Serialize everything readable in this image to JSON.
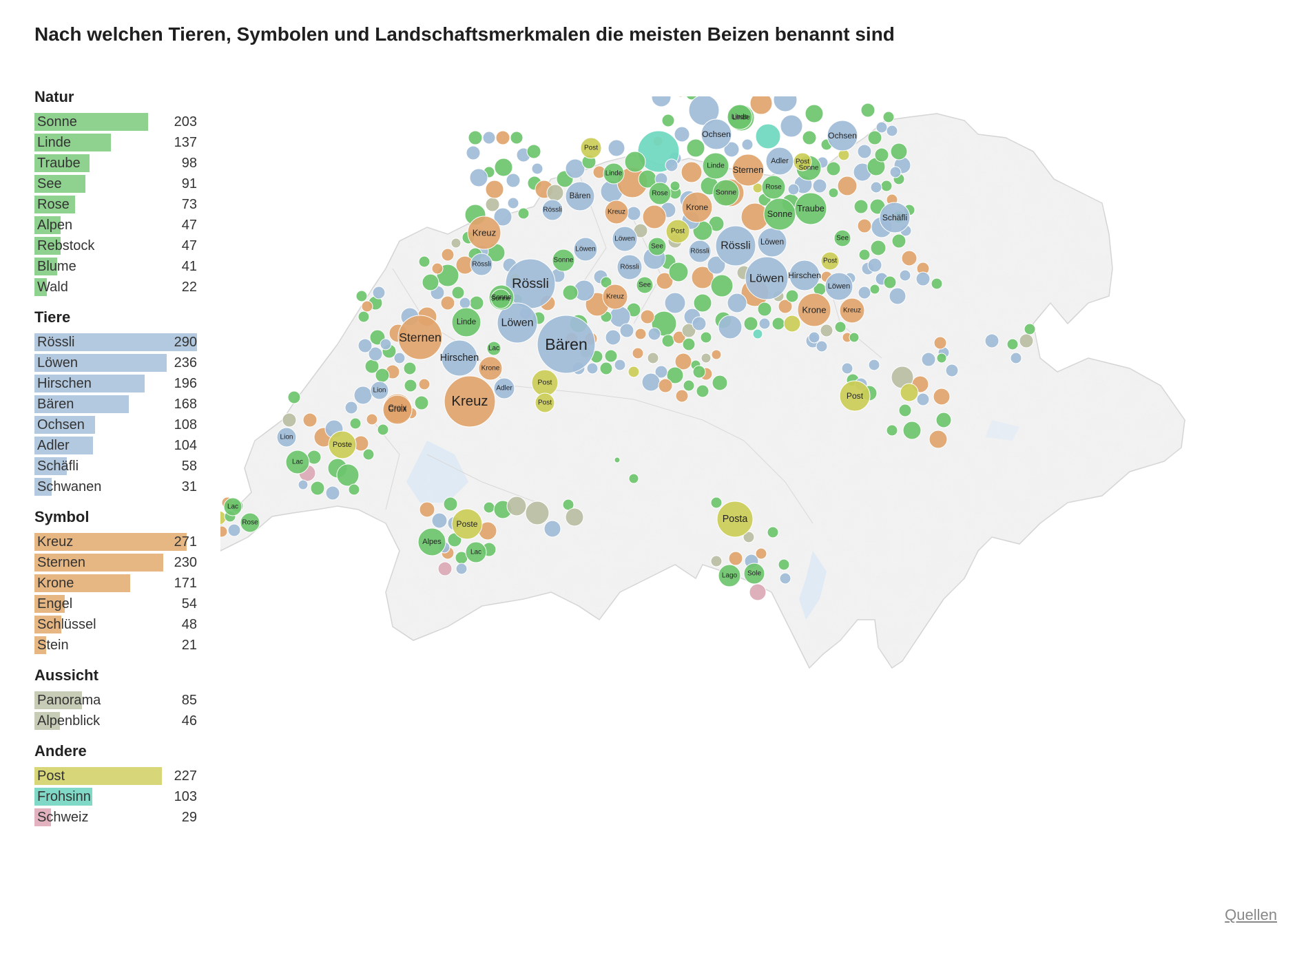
{
  "title": "Nach welchen Tieren, Symbolen und Landschaftsmerkmalen die meisten Beizen benannt sind",
  "credits_label": "Quellen",
  "colors": {
    "Natur": "#8fd18f",
    "Tiere": "#b3c9df",
    "Symbol": "#e6b783",
    "Aussicht": "#c7ccb6",
    "Andere_Post": "#d7d679",
    "Andere_Frohsinn": "#80d9c7",
    "Andere_Schweiz": "#e2b3bf"
  },
  "bubble_colors": {
    "Natur": "#6cc46c",
    "Tiere": "#9fbcd8",
    "Symbol": "#e1a46c",
    "Aussicht": "#b8bea3",
    "Post": "#cccd57",
    "Frohsinn": "#6fd8c0",
    "Schweiz": "#dba9b6"
  },
  "legend_max": 290,
  "categories": [
    {
      "name": "Natur",
      "color": "#8fd18f",
      "items": [
        {
          "label": "Sonne",
          "value": 203
        },
        {
          "label": "Linde",
          "value": 137
        },
        {
          "label": "Traube",
          "value": 98
        },
        {
          "label": "See",
          "value": 91
        },
        {
          "label": "Rose",
          "value": 73
        },
        {
          "label": "Alpen",
          "value": 47
        },
        {
          "label": "Rebstock",
          "value": 47
        },
        {
          "label": "Blume",
          "value": 41
        },
        {
          "label": "Wald",
          "value": 22
        }
      ]
    },
    {
      "name": "Tiere",
      "color": "#b3c9df",
      "items": [
        {
          "label": "Rössli",
          "value": 290
        },
        {
          "label": "Löwen",
          "value": 236
        },
        {
          "label": "Hirschen",
          "value": 196
        },
        {
          "label": "Bären",
          "value": 168
        },
        {
          "label": "Ochsen",
          "value": 108
        },
        {
          "label": "Adler",
          "value": 104
        },
        {
          "label": "Schäfli",
          "value": 58
        },
        {
          "label": "Schwanen",
          "value": 31
        }
      ]
    },
    {
      "name": "Symbol",
      "color": "#e6b783",
      "items": [
        {
          "label": "Kreuz",
          "value": 271
        },
        {
          "label": "Sternen",
          "value": 230
        },
        {
          "label": "Krone",
          "value": 171
        },
        {
          "label": "Engel",
          "value": 54
        },
        {
          "label": "Schlüssel",
          "value": 48
        },
        {
          "label": "Stein",
          "value": 21
        }
      ]
    },
    {
      "name": "Aussicht",
      "color": "#c7ccb6",
      "items": [
        {
          "label": "Panorama",
          "value": 85
        },
        {
          "label": "Alpenblick",
          "value": 46
        }
      ]
    },
    {
      "name": "Andere",
      "color": "#d7d679",
      "items": [
        {
          "label": "Post",
          "value": 227,
          "color": "#d7d679"
        },
        {
          "label": "Frohsinn",
          "value": 103,
          "color": "#80d9c7"
        },
        {
          "label": "Schweiz",
          "value": 29,
          "color": "#e2b3bf"
        }
      ]
    }
  ],
  "map_labels": [
    {
      "text": "Bären",
      "type": "Tiere"
    },
    {
      "text": "Rössli",
      "type": "Tiere"
    },
    {
      "text": "Löwen",
      "type": "Tiere"
    },
    {
      "text": "Kreuz",
      "type": "Symbol"
    },
    {
      "text": "Sternen",
      "type": "Symbol"
    },
    {
      "text": "Hirschen",
      "type": "Tiere"
    },
    {
      "text": "Krone",
      "type": "Symbol"
    },
    {
      "text": "Post",
      "type": "Post"
    },
    {
      "text": "Adler",
      "type": "Tiere"
    },
    {
      "text": "Lac",
      "type": "Natur"
    },
    {
      "text": "Linde",
      "type": "Natur"
    },
    {
      "text": "Sonne",
      "type": "Natur"
    },
    {
      "text": "Lion",
      "type": "Tiere"
    },
    {
      "text": "Croix",
      "type": "Symbol"
    },
    {
      "text": "Kreuz",
      "type": "Symbol"
    },
    {
      "text": "Rössli",
      "type": "Tiere"
    },
    {
      "text": "Sonne",
      "type": "Natur"
    },
    {
      "text": "Bären",
      "type": "Tiere"
    },
    {
      "text": "Rössli",
      "type": "Tiere"
    },
    {
      "text": "Post",
      "type": "Post"
    },
    {
      "text": "Linde",
      "type": "Natur"
    },
    {
      "text": "Kreuz",
      "type": "Symbol"
    },
    {
      "text": "Löwen",
      "type": "Tiere"
    },
    {
      "text": "Sonne",
      "type": "Natur"
    },
    {
      "text": "Rössli",
      "type": "Tiere"
    },
    {
      "text": "Kreuz",
      "type": "Symbol"
    },
    {
      "text": "See",
      "type": "Natur"
    },
    {
      "text": "Löwen",
      "type": "Tiere"
    },
    {
      "text": "Rose",
      "type": "Natur"
    },
    {
      "text": "Post",
      "type": "Post"
    },
    {
      "text": "See",
      "type": "Natur"
    },
    {
      "text": "Rössli",
      "type": "Tiere"
    },
    {
      "text": "Krone",
      "type": "Symbol"
    },
    {
      "text": "Sonne",
      "type": "Natur"
    },
    {
      "text": "Linde",
      "type": "Natur"
    },
    {
      "text": "Rössli",
      "type": "Tiere"
    },
    {
      "text": "Linde",
      "type": "Natur"
    },
    {
      "text": "Ochsen",
      "type": "Tiere"
    },
    {
      "text": "Sternen",
      "type": "Symbol"
    },
    {
      "text": "Adler",
      "type": "Tiere"
    },
    {
      "text": "Rose",
      "type": "Natur"
    },
    {
      "text": "Sonne",
      "type": "Natur"
    },
    {
      "text": "Löwen",
      "type": "Tiere"
    },
    {
      "text": "Löwen",
      "type": "Tiere"
    },
    {
      "text": "Post",
      "type": "Post"
    },
    {
      "text": "Sonne",
      "type": "Natur"
    },
    {
      "text": "Hirschen",
      "type": "Tiere"
    },
    {
      "text": "Löwen",
      "type": "Tiere"
    },
    {
      "text": "Traube",
      "type": "Natur"
    },
    {
      "text": "See",
      "type": "Natur"
    },
    {
      "text": "Post",
      "type": "Post"
    },
    {
      "text": "Krone",
      "type": "Symbol"
    },
    {
      "text": "Kreuz",
      "type": "Symbol"
    },
    {
      "text": "Ochsen",
      "type": "Tiere"
    },
    {
      "text": "Post",
      "type": "Post"
    },
    {
      "text": "Schäfli",
      "type": "Tiere"
    },
    {
      "text": "Linde",
      "type": "Natur"
    },
    {
      "text": "Croix",
      "type": "Symbol"
    },
    {
      "text": "Lion",
      "type": "Tiere"
    },
    {
      "text": "Poste",
      "type": "Post"
    },
    {
      "text": "Lac",
      "type": "Natur"
    },
    {
      "text": "Lac",
      "type": "Natur"
    },
    {
      "text": "Rose",
      "type": "Natur"
    },
    {
      "text": "Poste",
      "type": "Post"
    },
    {
      "text": "Alpes",
      "type": "Natur"
    },
    {
      "text": "Lac",
      "type": "Natur"
    },
    {
      "text": "Posta",
      "type": "Post"
    },
    {
      "text": "Lago",
      "type": "Natur"
    },
    {
      "text": "Sole",
      "type": "Natur"
    },
    {
      "text": "Post",
      "type": "Post"
    }
  ]
}
